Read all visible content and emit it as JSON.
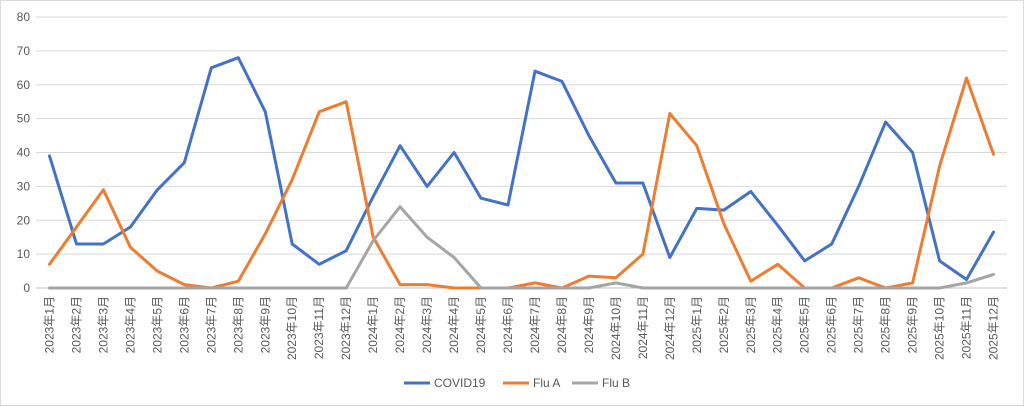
{
  "chart_data": {
    "type": "line",
    "title": "",
    "xlabel": "",
    "ylabel": "",
    "ylim": [
      0,
      80
    ],
    "yticks": [
      0,
      10,
      20,
      30,
      40,
      50,
      60,
      70,
      80
    ],
    "grid": true,
    "legend_position": "bottom",
    "categories": [
      "2023年1月",
      "2023年2月",
      "2023年3月",
      "2023年4月",
      "2023年5月",
      "2023年6月",
      "2023年7月",
      "2023年8月",
      "2023年9月",
      "2023年10月",
      "2023年11月",
      "2023年12月",
      "2024年1月",
      "2024年2月",
      "2024年3月",
      "2024年4月",
      "2024年5月",
      "2024年6月",
      "2024年7月",
      "2024年8月",
      "2024年9月",
      "2024年10月",
      "2024年11月",
      "2024年12月",
      "2025年1月",
      "2025年2月",
      "2025年3月",
      "2025年4月",
      "2025年5月",
      "2025年6月",
      "2025年7月",
      "2025年8月",
      "2025年9月",
      "2025年10月",
      "2025年11月",
      "2025年12月"
    ],
    "series": [
      {
        "name": "COVID19",
        "color": "#4472c4",
        "values": [
          39,
          13,
          13,
          18,
          29,
          37,
          65,
          68,
          52,
          13,
          7,
          11,
          27,
          42,
          30,
          40,
          26.5,
          24.5,
          64,
          61,
          45,
          31,
          31,
          9,
          23.5,
          23,
          28.5,
          18.5,
          8,
          13,
          30,
          49,
          40,
          8,
          2.5,
          16.5
        ]
      },
      {
        "name": "Flu A",
        "color": "#ed7d31",
        "values": [
          7,
          18,
          29,
          12,
          5,
          1,
          0,
          2,
          16,
          32,
          52,
          55,
          15,
          1,
          1,
          0,
          0,
          0,
          1.5,
          0,
          3.5,
          3,
          10,
          51.5,
          42,
          19,
          2,
          7,
          0,
          0,
          3,
          0,
          1.5,
          36,
          62,
          39.5
        ]
      },
      {
        "name": "Flu B",
        "color": "#a5a5a5",
        "values": [
          0,
          0,
          0,
          0,
          0,
          0,
          0,
          0,
          0,
          0,
          0,
          0,
          14,
          24,
          15,
          9,
          0,
          0,
          0,
          0,
          0,
          1.5,
          0,
          0,
          0,
          0,
          0,
          0,
          0,
          0,
          0,
          0,
          0,
          0,
          1.5,
          4
        ]
      }
    ]
  }
}
